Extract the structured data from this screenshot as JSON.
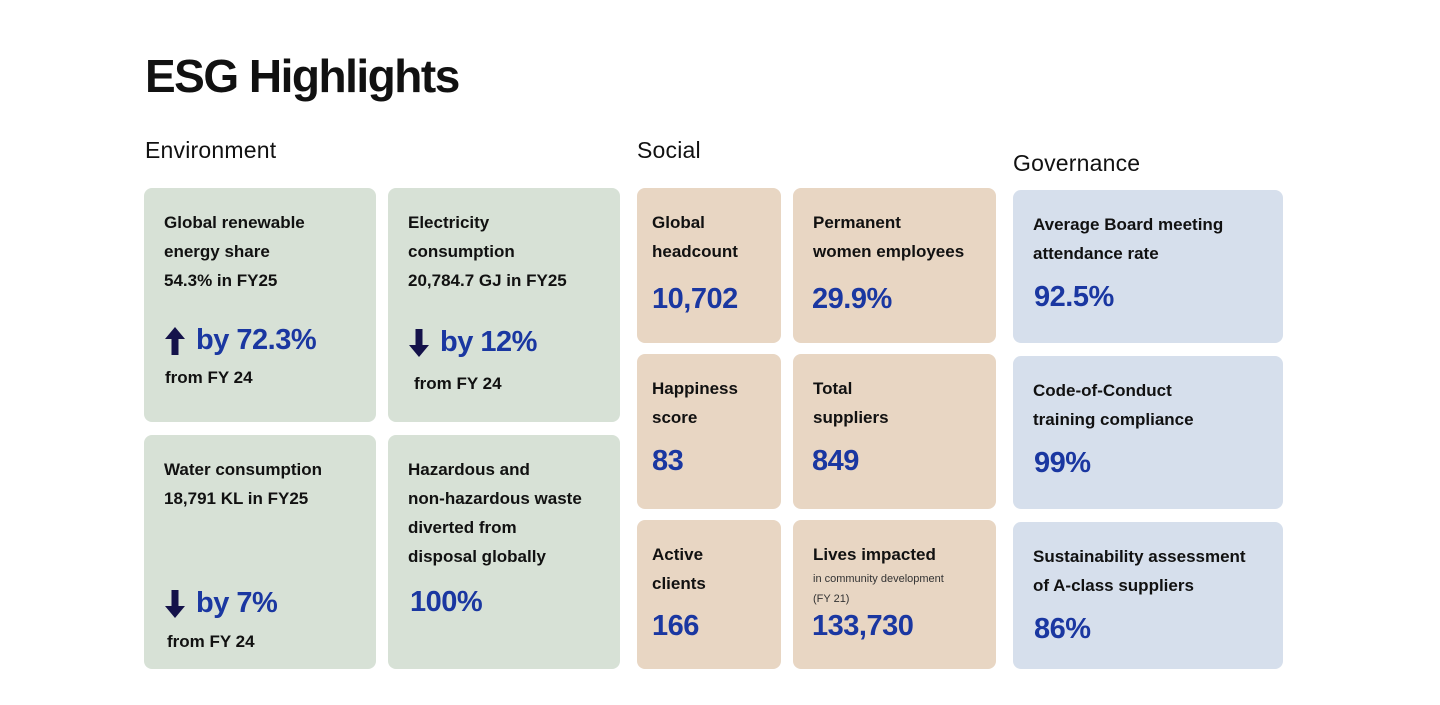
{
  "page": {
    "title": "ESG Highlights"
  },
  "sections": {
    "environment": "Environment",
    "social": "Social",
    "governance": "Governance"
  },
  "environment": {
    "renewable": {
      "line1": "Global renewable",
      "line2": "energy share",
      "line3": "54.3% in FY25",
      "change": "by 72.3%",
      "direction": "up",
      "from": "from FY 24"
    },
    "electricity": {
      "line1": "Electricity",
      "line2": "consumption",
      "line3": "20,784.7 GJ in FY25",
      "change": "by 12%",
      "direction": "down",
      "from": "from FY 24"
    },
    "water": {
      "line1": "Water consumption",
      "line2": "18,791 KL in FY25",
      "change": "by 7%",
      "direction": "down",
      "from": "from FY 24"
    },
    "waste": {
      "line1": "Hazardous and",
      "line2": "non-hazardous waste",
      "line3": "diverted from",
      "line4": "disposal globally",
      "value": "100%"
    }
  },
  "social": {
    "headcount": {
      "line1": "Global",
      "line2": "headcount",
      "value": "10,702"
    },
    "women": {
      "line1": "Permanent",
      "line2": "women employees",
      "value": "29.9%"
    },
    "happiness": {
      "line1": "Happiness",
      "line2": "score",
      "value": "83"
    },
    "suppliers": {
      "line1": "Total",
      "line2": "suppliers",
      "value": "849"
    },
    "clients": {
      "line1": "Active",
      "line2": "clients",
      "value": "166"
    },
    "lives": {
      "line1": "Lives impacted",
      "sub1": "in community development",
      "sub2": "(FY 21)",
      "value": "133,730"
    }
  },
  "governance": {
    "board": {
      "line1": "Average Board meeting",
      "line2": "attendance rate",
      "value": "92.5%"
    },
    "conduct": {
      "line1": "Code-of-Conduct",
      "line2": "training compliance",
      "value": "99%"
    },
    "assessment": {
      "line1": "Sustainability assessment",
      "line2": "of A-class suppliers",
      "value": "86%"
    }
  },
  "colors": {
    "accent": "#1a37a1",
    "arrow": "#14124a",
    "environment_bg": "#d7e1d6",
    "social_bg": "#e8d6c3",
    "governance_bg": "#d6dfec"
  },
  "icons": {
    "up": "arrow-up-icon",
    "down": "arrow-down-icon"
  }
}
